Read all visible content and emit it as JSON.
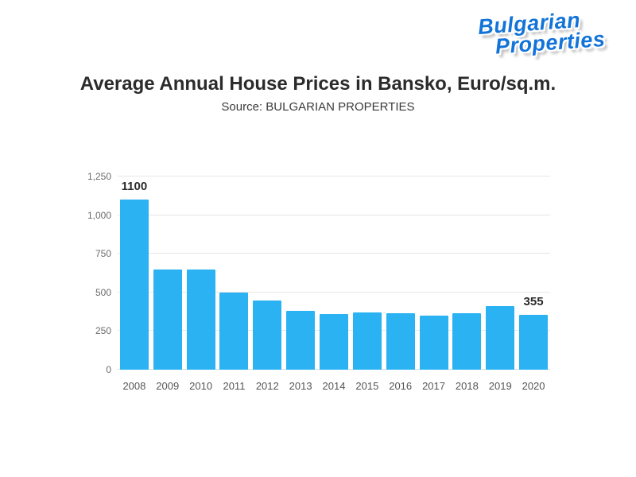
{
  "logo": {
    "line1": "Bulgarian",
    "line2": "Properties",
    "color": "#1273d8"
  },
  "header": {
    "title": "Average Annual House Prices in Bansko, Euro/sq.m.",
    "subtitle": "Source: BULGARIAN PROPERTIES"
  },
  "chart_data": {
    "type": "bar",
    "title": "Average Annual House Prices in Bansko, Euro/sq.m.",
    "subtitle": "Source: BULGARIAN PROPERTIES",
    "categories": [
      "2008",
      "2009",
      "2010",
      "2011",
      "2012",
      "2013",
      "2014",
      "2015",
      "2016",
      "2017",
      "2018",
      "2019",
      "2020"
    ],
    "values": [
      1100,
      650,
      650,
      500,
      450,
      380,
      360,
      370,
      365,
      350,
      365,
      410,
      355
    ],
    "xlabel": "",
    "ylabel": "",
    "ylim": [
      0,
      1250
    ],
    "yticks": [
      0,
      250,
      500,
      750,
      1000,
      1250
    ],
    "ytick_labels": [
      "0",
      "250",
      "500",
      "750",
      "1,000",
      "1,250"
    ],
    "grid": "horizontal",
    "legend": "none",
    "bar_color": "#2bb2f2",
    "annotations": [
      {
        "index": 0,
        "text": "1100"
      },
      {
        "index": 12,
        "text": "355"
      }
    ]
  }
}
